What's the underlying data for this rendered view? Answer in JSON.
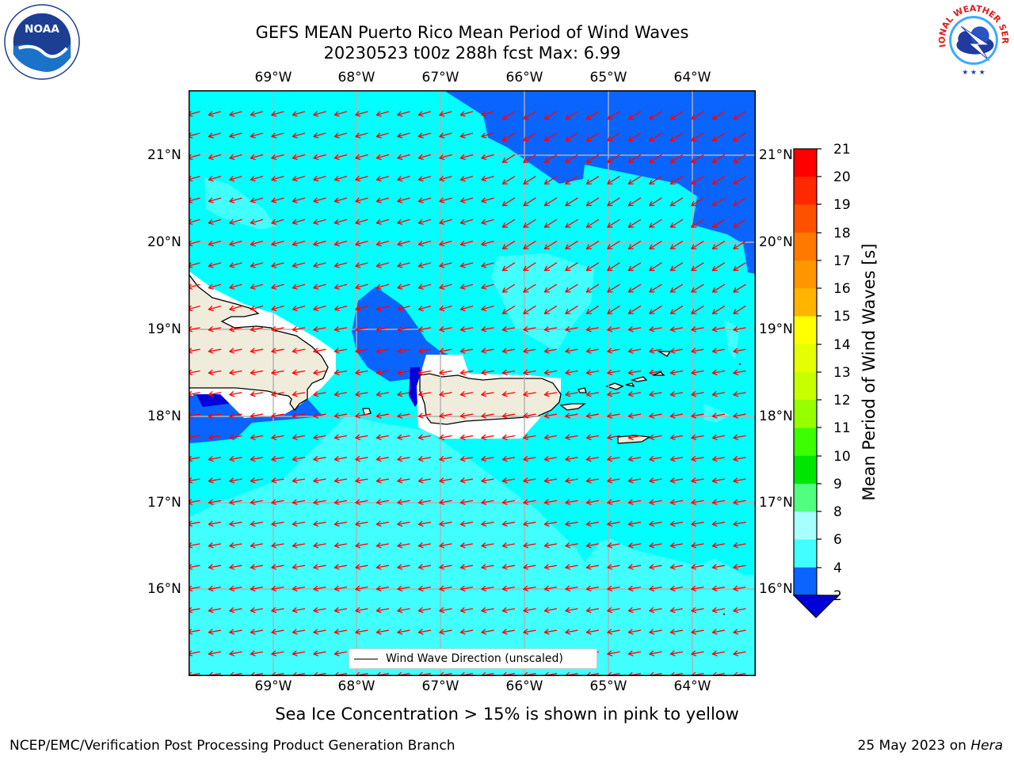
{
  "header": {
    "title_line1": "GEFS MEAN Puerto Rico Mean Period of Wind Waves",
    "title_line2": "20230523 t00z 288h fcst   Max: 6.99"
  },
  "logos": {
    "left": {
      "icon": "noaa-logo-icon",
      "text": "NOAA"
    },
    "right": {
      "icon": "national-weather-service-logo-icon",
      "text": "NATIONAL WEATHER SERVICE"
    }
  },
  "map": {
    "longitude_labels": [
      "69°W",
      "68°W",
      "67°W",
      "66°W",
      "65°W",
      "64°W"
    ],
    "latitude_labels": [
      "21°N",
      "20°N",
      "19°N",
      "18°N",
      "17°N",
      "16°N"
    ],
    "legend_label": "Wind Wave Direction (unscaled)",
    "arrow_color": "#ff0000",
    "field_colors": {
      "2_4": "#0a64ff",
      "4_6": "#00ffff",
      "6_8": "#42ffff",
      "land": "#efecdc",
      "below_2": "#0000d8"
    }
  },
  "colorbar": {
    "label": "Mean Period of Wind Waves [s]",
    "ticks": [
      "21",
      "20",
      "19",
      "18",
      "17",
      "16",
      "15",
      "14",
      "13",
      "12",
      "11",
      "10",
      "9",
      "8",
      "6",
      "4",
      "2"
    ],
    "colors": [
      "#ff0000",
      "#ff2800",
      "#ff5000",
      "#ff7800",
      "#ff9600",
      "#ffb400",
      "#ffd000",
      "#ffff00",
      "#e6ff00",
      "#c8ff00",
      "#96ff00",
      "#3cff00",
      "#00e600",
      "#50ff80",
      "#a8ffff",
      "#42ffff",
      "#00ffff",
      "#0a64ff"
    ],
    "extend_color": "#0000d8"
  },
  "footer": {
    "note": "Sea Ice Concentration > 15% is shown in pink to yellow",
    "left": "NCEP/EMC/Verification Post Processing Product Generation Branch",
    "right_date": "25 May 2023 on ",
    "right_host": "Hera"
  }
}
